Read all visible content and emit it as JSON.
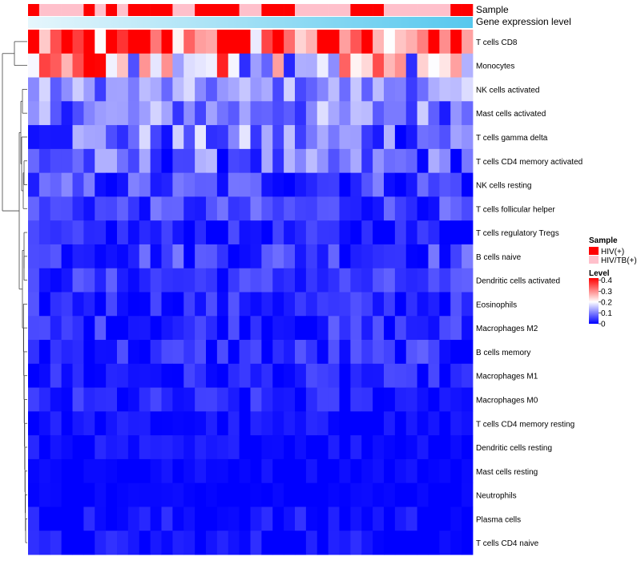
{
  "chart_data": {
    "type": "heatmap",
    "annotation_labels": [
      "Sample",
      "Gene expression level"
    ],
    "rows": [
      "T cells CD8",
      "Monocytes",
      "NK cells activated",
      "Mast cells activated",
      "T cells gamma delta",
      "T cells CD4 memory activated",
      "NK cells resting",
      "T cells follicular helper",
      "T cells regulatory  Tregs",
      "B cells naive",
      "Dendritic cells activated",
      "Eosinophils",
      "Macrophages M2",
      "B cells memory",
      "Macrophages M1",
      "Macrophages M0",
      "T cells CD4 memory resting",
      "Dendritic cells resting",
      "Mast cells resting",
      "Neutrophils",
      "Plasma cells",
      "T cells CD4 naive"
    ],
    "sample_groups": [
      1,
      0,
      0,
      0,
      0,
      1,
      0,
      1,
      0,
      1,
      1,
      1,
      1,
      0,
      0,
      1,
      1,
      1,
      1,
      0,
      0,
      1,
      1,
      1,
      0,
      0,
      0,
      0,
      0,
      1,
      1,
      1,
      0,
      0,
      0,
      0,
      0,
      0,
      1,
      1
    ],
    "legend_sample": {
      "title": "Sample",
      "entries": [
        {
          "label": "HIV(+)",
          "color": "#ff0000"
        },
        {
          "label": "HIV/TB(+)",
          "color": "#ffc0cb"
        }
      ]
    },
    "legend_level": {
      "title": "Level",
      "ticks": [
        "0.4",
        "0.3",
        "0.2",
        "0.1",
        "0"
      ],
      "tick_values": [
        0.4,
        0.3,
        0.2,
        0.1,
        0
      ],
      "min": 0,
      "max": 0.42
    },
    "row_means": [
      0.31,
      0.22,
      0.11,
      0.1,
      0.09,
      0.07,
      0.05,
      0.05,
      0.02,
      0.05,
      0.04,
      0.03,
      0.03,
      0.03,
      0.02,
      0.02,
      0.01,
      0.01,
      0.005,
      0.003,
      0.01,
      0.01
    ],
    "row_spread": [
      0.1,
      0.12,
      0.04,
      0.05,
      0.06,
      0.05,
      0.04,
      0.03,
      0.025,
      0.035,
      0.025,
      0.025,
      0.03,
      0.03,
      0.025,
      0.025,
      0.015,
      0.015,
      0.01,
      0.006,
      0.02,
      0.02
    ],
    "n_samples": 40,
    "colors": {
      "low": "#0000ff",
      "mid": "#ffffff",
      "high": "#ff0000"
    }
  }
}
